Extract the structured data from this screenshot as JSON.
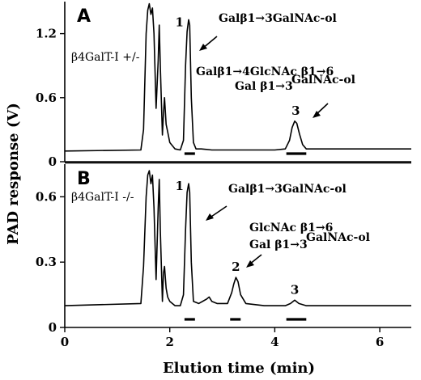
{
  "chart_data": {
    "type": "line",
    "xlabel": "Elution time  (min)",
    "ylabel": "PAD response (V)",
    "xlim": [
      0,
      6.6
    ],
    "x_ticks": [
      "0",
      "2",
      "4",
      "6"
    ],
    "x_tick_values": [
      0,
      2,
      4,
      6
    ],
    "panels": [
      {
        "letter": "A",
        "genotype": "β4GalT-I +/-",
        "ylim": [
          0,
          1.5
        ],
        "y_ticks": [
          "0",
          "0.6",
          "1.2"
        ],
        "y_tick_values": [
          0,
          0.6,
          1.2
        ],
        "series": [
          {
            "x": [
              0,
              1.45,
              1.5,
              1.55,
              1.58,
              1.61,
              1.64,
              1.67,
              1.7,
              1.74,
              1.78,
              1.8,
              1.82,
              1.86,
              1.88,
              1.9,
              1.93,
              1.96,
              2.0,
              2.1,
              2.2,
              2.26,
              2.3,
              2.33,
              2.36,
              2.38,
              2.41,
              2.45,
              2.5,
              2.6,
              2.8,
              3.0,
              3.5,
              4.0,
              4.2,
              4.28,
              4.33,
              4.38,
              4.42,
              4.47,
              4.53,
              4.6,
              5.0,
              6.6
            ],
            "y": [
              0.1,
              0.11,
              0.3,
              1.2,
              1.42,
              1.48,
              1.38,
              1.44,
              1.2,
              0.5,
              0.95,
              1.28,
              0.9,
              0.25,
              0.45,
              0.6,
              0.35,
              0.28,
              0.18,
              0.12,
              0.11,
              0.2,
              0.9,
              1.22,
              1.33,
              1.28,
              0.6,
              0.18,
              0.12,
              0.12,
              0.11,
              0.11,
              0.11,
              0.11,
              0.12,
              0.2,
              0.32,
              0.38,
              0.36,
              0.26,
              0.16,
              0.12,
              0.12,
              0.12
            ]
          }
        ],
        "peaks": [
          {
            "number": "1",
            "x": 2.37,
            "bar_from": 2.28,
            "bar_to": 2.48
          },
          {
            "number": "3",
            "x": 4.4,
            "bar_from": 4.22,
            "bar_to": 4.6
          }
        ],
        "annotations": [
          {
            "text": "Galβ1→3GalNAc-ol"
          },
          {
            "line1": "Galβ1→4GlcNAc β1→6",
            "line2": "Gal β1→3",
            "suffix": "GalNAc-ol"
          }
        ]
      },
      {
        "letter": "B",
        "genotype": "β4GalT-I -/-",
        "ylim": [
          0,
          0.75
        ],
        "y_ticks": [
          "0",
          "0.3",
          "0.6"
        ],
        "y_tick_values": [
          0,
          0.3,
          0.6
        ],
        "series": [
          {
            "x": [
              0,
              1.45,
              1.5,
              1.55,
              1.58,
              1.61,
              1.64,
              1.67,
              1.7,
              1.74,
              1.78,
              1.8,
              1.82,
              1.86,
              1.88,
              1.9,
              1.93,
              1.96,
              2.0,
              2.1,
              2.2,
              2.26,
              2.3,
              2.33,
              2.36,
              2.38,
              2.41,
              2.45,
              2.55,
              2.7,
              2.75,
              2.8,
              2.9,
              3.1,
              3.18,
              3.22,
              3.26,
              3.3,
              3.35,
              3.45,
              3.8,
              4.2,
              4.3,
              4.38,
              4.46,
              4.6,
              5.0,
              6.6
            ],
            "y": [
              0.1,
              0.11,
              0.28,
              0.6,
              0.7,
              0.72,
              0.66,
              0.7,
              0.55,
              0.22,
              0.55,
              0.68,
              0.45,
              0.12,
              0.25,
              0.28,
              0.18,
              0.14,
              0.12,
              0.1,
              0.1,
              0.15,
              0.45,
              0.62,
              0.66,
              0.62,
              0.3,
              0.12,
              0.11,
              0.13,
              0.14,
              0.12,
              0.11,
              0.11,
              0.16,
              0.2,
              0.23,
              0.21,
              0.15,
              0.11,
              0.1,
              0.1,
              0.11,
              0.125,
              0.11,
              0.1,
              0.1,
              0.1
            ]
          }
        ],
        "peaks": [
          {
            "number": "1",
            "x": 2.37,
            "bar_from": 2.28,
            "bar_to": 2.48
          },
          {
            "number": "2",
            "x": 3.26,
            "bar_from": 3.15,
            "bar_to": 3.35
          },
          {
            "number": "3",
            "x": 4.38,
            "bar_from": 4.22,
            "bar_to": 4.6
          }
        ],
        "annotations": [
          {
            "text": "Galβ1→3GalNAc-ol"
          },
          {
            "line1": "GlcNAc β1→6",
            "line2": "Gal β1→3",
            "suffix": "GalNAc-ol"
          }
        ]
      }
    ]
  }
}
